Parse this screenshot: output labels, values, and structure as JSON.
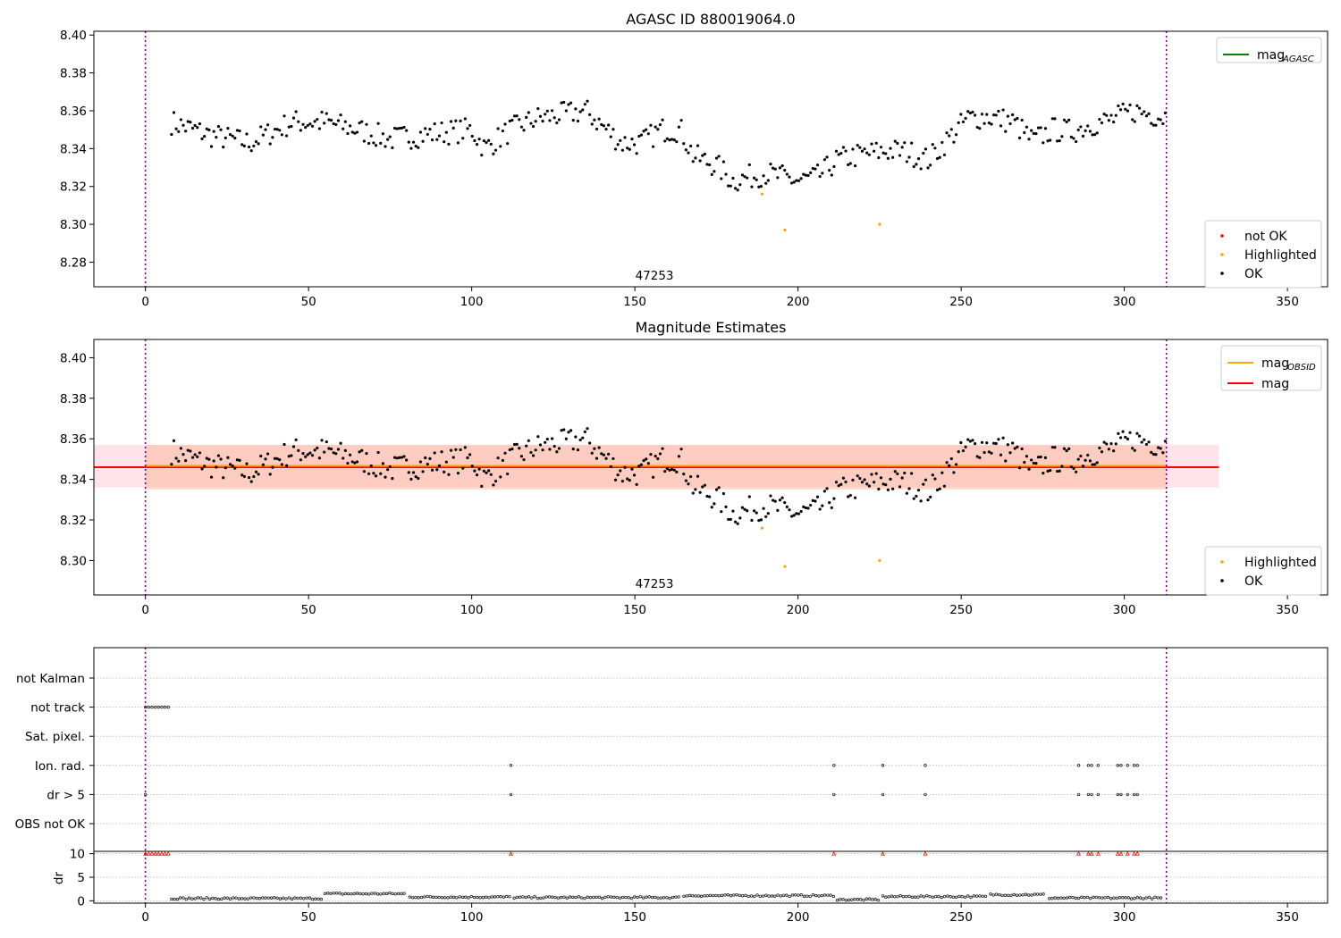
{
  "chart_data": [
    {
      "type": "scatter",
      "title": "AGASC ID 880019064.0",
      "xlim": [
        -15.8,
        362.3
      ],
      "ylim": [
        8.267,
        8.402
      ],
      "xticks": [
        0,
        50,
        100,
        150,
        200,
        250,
        300,
        350
      ],
      "yticks": [
        8.28,
        8.3,
        8.32,
        8.34,
        8.36,
        8.38,
        8.4
      ],
      "grid": false,
      "vlines": [
        0,
        312.9
      ],
      "obsid_labels": [
        {
          "x": 156,
          "text": "47253"
        }
      ],
      "line_legend": [
        "mag"
      ],
      "line_legend_sub": [
        "AGASC"
      ],
      "line_legend_colors": [
        "#008000"
      ],
      "marker_legend": [
        {
          "name": "not OK",
          "color": "#ff0000"
        },
        {
          "name": "Highlighted",
          "color": "#ffa500"
        },
        {
          "name": "OK",
          "color": "#000000"
        }
      ],
      "highlighted_points": [
        [
          189,
          8.316
        ],
        [
          196,
          8.297
        ],
        [
          225,
          8.3
        ]
      ]
    },
    {
      "type": "scatter",
      "title": "Magnitude Estimates",
      "xlim": [
        -15.8,
        362.3
      ],
      "ylim": [
        8.283,
        8.409
      ],
      "xticks": [
        0,
        50,
        100,
        150,
        200,
        250,
        300,
        350
      ],
      "yticks": [
        8.3,
        8.32,
        8.34,
        8.36,
        8.38,
        8.4
      ],
      "grid": false,
      "vlines": [
        0,
        312.9
      ],
      "obsid_labels": [
        {
          "x": 156,
          "text": "47253"
        }
      ],
      "mag": 8.346,
      "mag_obsid": 8.3462,
      "band_mag": [
        8.336,
        8.357
      ],
      "band_obsid": [
        8.335,
        8.357
      ],
      "band_x_end": 329,
      "line_legend": [
        "mag",
        "mag"
      ],
      "line_legend_sub": [
        "OBSID",
        ""
      ],
      "line_legend_colors": [
        "#ffa500",
        "#ff0000"
      ],
      "marker_legend": [
        {
          "name": "Highlighted",
          "color": "#ffa500"
        },
        {
          "name": "OK",
          "color": "#000000"
        }
      ],
      "highlighted_points": [
        [
          189,
          8.316
        ],
        [
          196,
          8.297
        ],
        [
          225,
          8.3
        ]
      ]
    },
    {
      "type": "scatter",
      "title": "",
      "xlim": [
        -15.8,
        362.3
      ],
      "xticks": [
        0,
        50,
        100,
        150,
        200,
        250,
        300,
        350
      ],
      "categories": [
        "not Kalman",
        "not track",
        "Sat. pixel.",
        "Ion. rad.",
        "dr > 5",
        "OBS not OK"
      ],
      "flags": {
        "not track": [
          0,
          1,
          2,
          3,
          4,
          5,
          6,
          7
        ],
        "Ion. rad.": [
          112,
          211,
          226,
          239,
          286,
          289,
          290,
          292,
          298,
          299,
          301,
          303,
          304
        ],
        "dr > 5": [
          0,
          112,
          211,
          226,
          239,
          286,
          289,
          290,
          292,
          298,
          299,
          301,
          303,
          304
        ]
      },
      "ylabel": "dr",
      "dr_yticks": [
        0,
        5,
        10
      ],
      "dr_ylim": [
        -0.5,
        10.5
      ],
      "dr_clipped": [
        0,
        1,
        2,
        3,
        4,
        5,
        6,
        7,
        112,
        211,
        226,
        239,
        286,
        289,
        290,
        292,
        298,
        299,
        301,
        303,
        304
      ],
      "dr_clipped_value": 10,
      "dr_segments": [
        {
          "x": [
            8,
            54
          ],
          "dr": 0.5
        },
        {
          "x": [
            55,
            80
          ],
          "dr": 1.5
        },
        {
          "x": [
            81,
            112
          ],
          "dr": 0.8
        },
        {
          "x": [
            113,
            164
          ],
          "dr": 0.7
        },
        {
          "x": [
            165,
            211
          ],
          "dr": 1.1
        },
        {
          "x": [
            212,
            225
          ],
          "dr": 0.25
        },
        {
          "x": [
            226,
            258
          ],
          "dr": 0.9
        },
        {
          "x": [
            259,
            276
          ],
          "dr": 1.3
        },
        {
          "x": [
            277,
            312
          ],
          "dr": 0.6
        }
      ]
    }
  ],
  "colors": {
    "ok": "#000000",
    "highlighted": "#ffa500",
    "not_ok": "#ff0000",
    "vline": "#800080",
    "band_mag": "#ffc0cb",
    "band_obsid": "#ffa07a",
    "grid": "#b0b0b0"
  }
}
